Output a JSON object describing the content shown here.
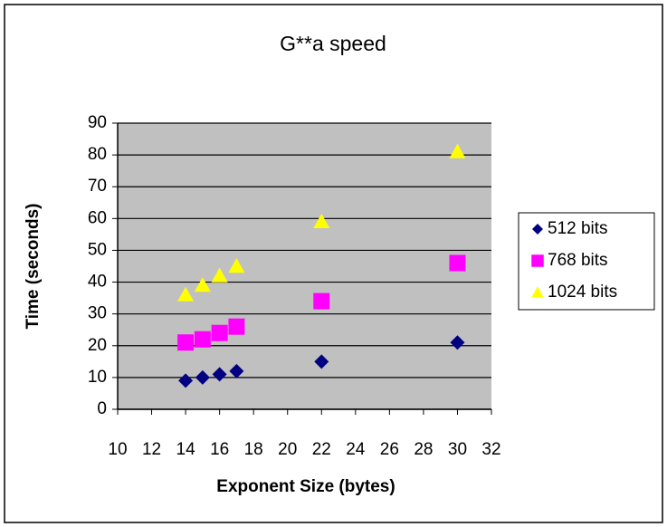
{
  "chart_data": {
    "type": "scatter",
    "title": "G**a speed",
    "x_label": "Exponent Size (bytes)",
    "y_label": "Time (seconds)",
    "x": [
      14,
      15,
      16,
      17,
      22,
      30
    ],
    "series": [
      {
        "name": "512 bits",
        "color": "#000080",
        "marker": "diamond",
        "values": [
          9,
          10,
          11,
          12,
          15,
          21
        ]
      },
      {
        "name": "768 bits",
        "color": "#ff00ff",
        "marker": "square",
        "values": [
          21,
          22,
          24,
          26,
          34,
          46
        ]
      },
      {
        "name": "1024 bits",
        "color": "#ffff00",
        "marker": "triangle",
        "values": [
          36,
          39,
          42,
          45,
          59,
          81
        ]
      }
    ],
    "xlim": [
      10,
      32
    ],
    "xticks": [
      10,
      12,
      14,
      16,
      18,
      20,
      22,
      24,
      26,
      28,
      30,
      32
    ],
    "ylim": [
      0,
      90
    ],
    "yticks": [
      0,
      10,
      20,
      30,
      40,
      50,
      60,
      70,
      80,
      90
    ],
    "grid": true,
    "plot_background": "#c0c0c0",
    "legend": "right"
  }
}
